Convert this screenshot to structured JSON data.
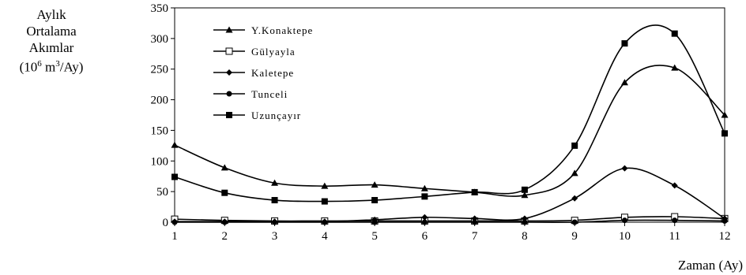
{
  "chart_data": {
    "type": "line",
    "ylabel_lines": [
      "Aylık",
      "Ortalama",
      "Akımlar",
      "(10",
      "6",
      " m",
      "3",
      "/Ay)"
    ],
    "xlabel": "Zaman (Ay)",
    "x": [
      1,
      2,
      3,
      4,
      5,
      6,
      7,
      8,
      9,
      10,
      11,
      12
    ],
    "xlim": [
      1,
      12
    ],
    "ylim": [
      0,
      350
    ],
    "yticks": [
      0,
      50,
      100,
      150,
      200,
      250,
      300,
      350
    ],
    "grid": false,
    "legend_position": "top-left inside",
    "series": [
      {
        "name": "Y.Konaktepe",
        "marker": "triangle",
        "values": [
          126,
          89,
          64,
          59,
          61,
          55,
          49,
          44,
          80,
          228,
          252,
          175
        ]
      },
      {
        "name": "Gülyayla",
        "marker": "square-open",
        "values": [
          5,
          3,
          2,
          2,
          2,
          2,
          2,
          2,
          3,
          8,
          9,
          6
        ]
      },
      {
        "name": "Kaletepe",
        "marker": "diamond",
        "values": [
          1,
          1,
          1,
          1,
          4,
          8,
          6,
          6,
          39,
          88,
          60,
          6
        ]
      },
      {
        "name": "Tunceli",
        "marker": "circle",
        "values": [
          0,
          0,
          0,
          0,
          0,
          0,
          0,
          0,
          0,
          3,
          3,
          2
        ]
      },
      {
        "name": "Uzunçayır",
        "marker": "square",
        "values": [
          74,
          48,
          36,
          34,
          36,
          42,
          49,
          53,
          125,
          292,
          308,
          145
        ]
      }
    ]
  }
}
